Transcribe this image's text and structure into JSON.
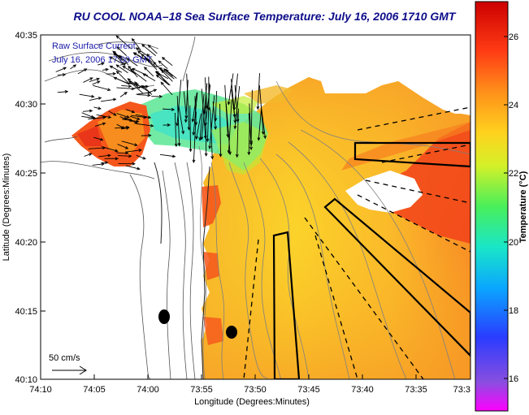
{
  "title": "RU COOL  NOAA–18  Sea Surface Temperature:  July 16, 2006 1710 GMT",
  "legend_line1": "Raw Surface Current",
  "legend_line2": "July 16, 2006 17:00 GMT",
  "scale_label": "50 cm/s",
  "x_label": "Longitude (Degrees:Minutes)",
  "y_label": "Latitude (Degrees:Minutes)",
  "x_ticks": [
    "74:10",
    "74:05",
    "74:00",
    "73:55",
    "73:50",
    "73:45",
    "73:40",
    "73:35",
    "73:3"
  ],
  "y_ticks": [
    "40:35",
    "40:30",
    "40:25",
    "40:20",
    "40:15",
    "40:10"
  ],
  "colorbar_label": "Temperature (°C)",
  "colorbar_ticks": [
    "26",
    "24",
    "22",
    "20",
    "18",
    "16"
  ],
  "colors": {
    "title": "#0d0d8a",
    "legend_text": "#1a1aa8",
    "colorbar_stops": [
      "#ff00ff",
      "#8a4ee0",
      "#2a3cff",
      "#0aa6ff",
      "#19e6c8",
      "#49ef5a",
      "#d5f028",
      "#ffd21e",
      "#ff8f1a",
      "#ff3b14",
      "#cc0000"
    ]
  },
  "markers": [
    {
      "label": "black-dot-1"
    },
    {
      "label": "black-dot-2"
    }
  ]
}
